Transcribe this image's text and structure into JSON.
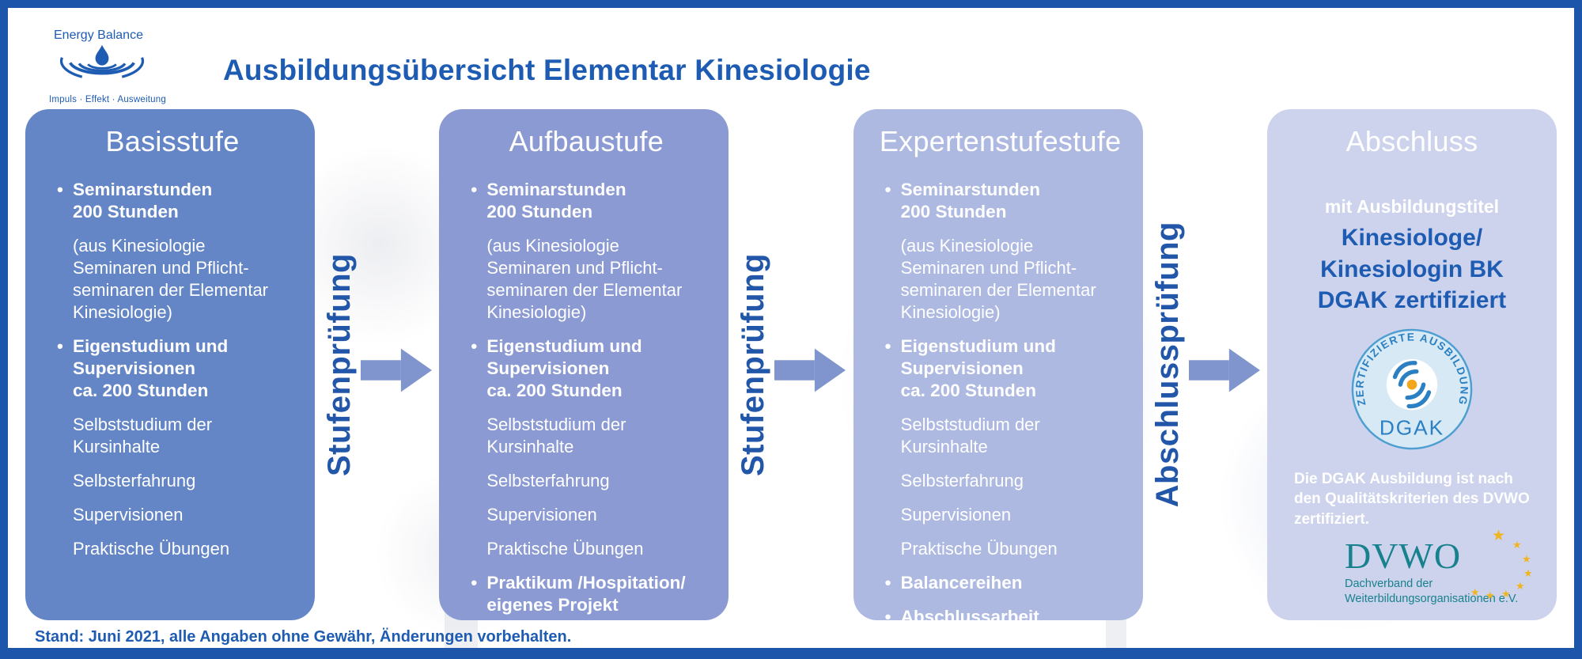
{
  "header": {
    "brand": "Energy Balance",
    "tagline": "Impuls · Effekt · Ausweitung",
    "title": "Ausbildungsübersicht Elementar Kinesiologie"
  },
  "columns": [
    {
      "title": "Basisstufe",
      "color": "#6486c6",
      "items": [
        {
          "bullet": true,
          "bold": true,
          "text": "Seminarstunden\n200 Stunden"
        },
        {
          "bullet": false,
          "bold": false,
          "text": "(aus Kinesiologie\nSeminaren und Pflicht-\nseminaren der Elementar\nKinesiologie)"
        },
        {
          "bullet": true,
          "bold": true,
          "text": "Eigenstudium und\nSupervisionen\nca. 200 Stunden"
        },
        {
          "bullet": false,
          "bold": false,
          "text": "Selbststudium der\nKursinhalte"
        },
        {
          "bullet": false,
          "bold": false,
          "text": "Selbsterfahrung"
        },
        {
          "bullet": false,
          "bold": false,
          "text": "Supervisionen"
        },
        {
          "bullet": false,
          "bold": false,
          "text": "Praktische Übungen"
        }
      ]
    },
    {
      "title": "Aufbaustufe",
      "color": "#8b9ad3",
      "items": [
        {
          "bullet": true,
          "bold": true,
          "text": "Seminarstunden\n200 Stunden"
        },
        {
          "bullet": false,
          "bold": false,
          "text": "(aus Kinesiologie\nSeminaren und Pflicht-\nseminaren der Elementar\nKinesiologie)"
        },
        {
          "bullet": true,
          "bold": true,
          "text": "Eigenstudium und\nSupervisionen\nca. 200 Stunden"
        },
        {
          "bullet": false,
          "bold": false,
          "text": "Selbststudium der\nKursinhalte"
        },
        {
          "bullet": false,
          "bold": false,
          "text": "Selbsterfahrung"
        },
        {
          "bullet": false,
          "bold": false,
          "text": "Supervisionen"
        },
        {
          "bullet": false,
          "bold": false,
          "text": "Praktische Übungen"
        },
        {
          "bullet": true,
          "bold": true,
          "text": "Praktikum /Hospitation/\neigenes Projekt"
        }
      ]
    },
    {
      "title": "Expertenstufestufe",
      "color": "#aeb9e1",
      "items": [
        {
          "bullet": true,
          "bold": true,
          "text": "Seminarstunden\n200 Stunden"
        },
        {
          "bullet": false,
          "bold": false,
          "text": "(aus Kinesiologie\nSeminaren und Pflicht-\nseminaren der Elementar\nKinesiologie)"
        },
        {
          "bullet": true,
          "bold": true,
          "text": "Eigenstudium und\nSupervisionen\nca. 200 Stunden"
        },
        {
          "bullet": false,
          "bold": false,
          "text": "Selbststudium der\nKursinhalte"
        },
        {
          "bullet": false,
          "bold": false,
          "text": "Selbsterfahrung"
        },
        {
          "bullet": false,
          "bold": false,
          "text": "Supervisionen"
        },
        {
          "bullet": false,
          "bold": false,
          "text": "Praktische Übungen"
        },
        {
          "bullet": true,
          "bold": true,
          "text": "Balancereihen"
        },
        {
          "bullet": true,
          "bold": true,
          "text": "Abschlussarbeit"
        }
      ]
    }
  ],
  "dividers": [
    {
      "label": "Stufenprüfung"
    },
    {
      "label": "Stufenprüfung"
    },
    {
      "label": "Abschlussprüfung"
    }
  ],
  "final_column": {
    "title": "Abschluss",
    "color": "#cdd3ec",
    "intro": "mit Ausbildungstitel",
    "degree": "Kinesiologe/\nKinesiologin BK\nDGAK zertifiziert",
    "badge": {
      "arc_text": "ZERTIFIZIERTE AUSBILDUNG",
      "label": "DGAK"
    },
    "cert_note": "Die DGAK Ausbildung ist nach\nden Qualitätskriterien des DVWO\nzertifiziert.",
    "dvwo": {
      "acronym": "DVWO",
      "subtitle": "Dachverband der\nWeiterbildungsorganisationen e.V."
    }
  },
  "footer": {
    "note": "Stand: Juni 2021, alle Angaben ohne Gewähr, Änderungen vorbehalten."
  },
  "colors": {
    "frame": "#1d55ab",
    "accent_blue": "#1e5cb3",
    "divider_blue": "#2156a9",
    "arrow": "#8095cd",
    "card_1": "#6486c6",
    "card_2": "#8b9ad3",
    "card_3": "#aeb9e1",
    "card_4": "#cdd3ec",
    "badge_bg": "#d8e9f6",
    "badge_ring": "#4e9fd1",
    "badge_blue": "#2b80c3",
    "badge_dot": "#f2a71b",
    "dvwo_teal": "#17818e",
    "star_gold": "#f0b51c"
  }
}
